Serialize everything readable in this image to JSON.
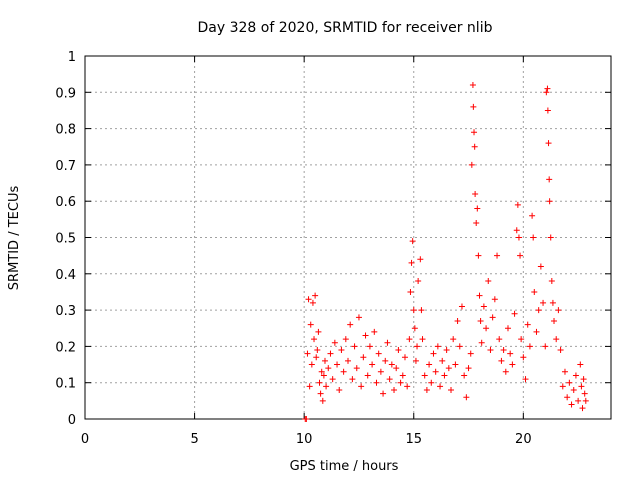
{
  "chart_data": {
    "type": "scatter",
    "title": "Day 328 of 2020, SRMTID for receiver nlib",
    "xlabel": "GPS time / hours",
    "ylabel": "SRMTID / TECUs",
    "xlim": [
      0,
      24
    ],
    "ylim": [
      0,
      1
    ],
    "x_ticks": [
      0,
      5,
      10,
      15,
      20
    ],
    "x_tick_labels": [
      "0",
      "5",
      "10",
      "15",
      "20"
    ],
    "y_ticks": [
      0,
      0.1,
      0.2,
      0.3,
      0.4,
      0.5,
      0.6,
      0.7,
      0.8,
      0.9,
      1
    ],
    "y_tick_labels": [
      "0",
      "0.1",
      "0.2",
      "0.3",
      "0.4",
      "0.5",
      "0.6",
      "0.7",
      "0.8",
      "0.9",
      "1"
    ],
    "grid": true,
    "marker": "plus",
    "color": "#ff0000",
    "series": [
      {
        "name": "SRMTID",
        "points": [
          [
            10.05,
            0.0
          ],
          [
            10.1,
            0.0
          ],
          [
            10.15,
            0.18
          ],
          [
            10.2,
            0.33
          ],
          [
            10.25,
            0.09
          ],
          [
            10.3,
            0.26
          ],
          [
            10.35,
            0.15
          ],
          [
            10.4,
            0.32
          ],
          [
            10.45,
            0.22
          ],
          [
            10.5,
            0.34
          ],
          [
            10.55,
            0.17
          ],
          [
            10.6,
            0.19
          ],
          [
            10.65,
            0.24
          ],
          [
            10.7,
            0.1
          ],
          [
            10.75,
            0.07
          ],
          [
            10.8,
            0.13
          ],
          [
            10.85,
            0.05
          ],
          [
            10.9,
            0.12
          ],
          [
            10.95,
            0.16
          ],
          [
            11.0,
            0.09
          ],
          [
            11.1,
            0.14
          ],
          [
            11.2,
            0.18
          ],
          [
            11.3,
            0.11
          ],
          [
            11.4,
            0.21
          ],
          [
            11.5,
            0.15
          ],
          [
            11.6,
            0.08
          ],
          [
            11.7,
            0.19
          ],
          [
            11.8,
            0.13
          ],
          [
            11.9,
            0.22
          ],
          [
            12.0,
            0.16
          ],
          [
            12.1,
            0.26
          ],
          [
            12.2,
            0.11
          ],
          [
            12.3,
            0.2
          ],
          [
            12.4,
            0.14
          ],
          [
            12.5,
            0.28
          ],
          [
            12.6,
            0.09
          ],
          [
            12.7,
            0.17
          ],
          [
            12.8,
            0.23
          ],
          [
            12.9,
            0.12
          ],
          [
            13.0,
            0.2
          ],
          [
            13.1,
            0.15
          ],
          [
            13.2,
            0.24
          ],
          [
            13.3,
            0.1
          ],
          [
            13.4,
            0.18
          ],
          [
            13.5,
            0.13
          ],
          [
            13.6,
            0.07
          ],
          [
            13.7,
            0.16
          ],
          [
            13.8,
            0.21
          ],
          [
            13.9,
            0.11
          ],
          [
            14.0,
            0.15
          ],
          [
            14.1,
            0.08
          ],
          [
            14.2,
            0.14
          ],
          [
            14.3,
            0.19
          ],
          [
            14.4,
            0.1
          ],
          [
            14.5,
            0.12
          ],
          [
            14.6,
            0.17
          ],
          [
            14.7,
            0.09
          ],
          [
            14.8,
            0.22
          ],
          [
            14.85,
            0.35
          ],
          [
            14.9,
            0.43
          ],
          [
            14.95,
            0.49
          ],
          [
            15.0,
            0.3
          ],
          [
            15.05,
            0.25
          ],
          [
            15.1,
            0.16
          ],
          [
            15.15,
            0.2
          ],
          [
            15.2,
            0.38
          ],
          [
            15.3,
            0.44
          ],
          [
            15.35,
            0.3
          ],
          [
            15.4,
            0.22
          ],
          [
            15.5,
            0.12
          ],
          [
            15.6,
            0.08
          ],
          [
            15.7,
            0.15
          ],
          [
            15.8,
            0.1
          ],
          [
            15.9,
            0.18
          ],
          [
            16.0,
            0.13
          ],
          [
            16.1,
            0.2
          ],
          [
            16.2,
            0.09
          ],
          [
            16.3,
            0.16
          ],
          [
            16.4,
            0.12
          ],
          [
            16.5,
            0.19
          ],
          [
            16.6,
            0.14
          ],
          [
            16.7,
            0.08
          ],
          [
            16.8,
            0.22
          ],
          [
            16.9,
            0.15
          ],
          [
            17.0,
            0.27
          ],
          [
            17.1,
            0.2
          ],
          [
            17.2,
            0.31
          ],
          [
            17.3,
            0.12
          ],
          [
            17.4,
            0.06
          ],
          [
            17.5,
            0.14
          ],
          [
            17.6,
            0.18
          ],
          [
            17.65,
            0.7
          ],
          [
            17.7,
            0.92
          ],
          [
            17.72,
            0.86
          ],
          [
            17.75,
            0.79
          ],
          [
            17.78,
            0.75
          ],
          [
            17.8,
            0.62
          ],
          [
            17.85,
            0.54
          ],
          [
            17.9,
            0.58
          ],
          [
            17.95,
            0.45
          ],
          [
            18.0,
            0.34
          ],
          [
            18.05,
            0.27
          ],
          [
            18.1,
            0.21
          ],
          [
            18.2,
            0.31
          ],
          [
            18.3,
            0.25
          ],
          [
            18.4,
            0.38
          ],
          [
            18.5,
            0.19
          ],
          [
            18.6,
            0.28
          ],
          [
            18.7,
            0.33
          ],
          [
            18.8,
            0.45
          ],
          [
            18.9,
            0.22
          ],
          [
            19.0,
            0.16
          ],
          [
            19.1,
            0.19
          ],
          [
            19.2,
            0.13
          ],
          [
            19.3,
            0.25
          ],
          [
            19.4,
            0.18
          ],
          [
            19.5,
            0.15
          ],
          [
            19.6,
            0.29
          ],
          [
            19.7,
            0.52
          ],
          [
            19.75,
            0.59
          ],
          [
            19.8,
            0.5
          ],
          [
            19.85,
            0.45
          ],
          [
            19.9,
            0.22
          ],
          [
            20.0,
            0.17
          ],
          [
            20.1,
            0.11
          ],
          [
            20.2,
            0.26
          ],
          [
            20.3,
            0.2
          ],
          [
            20.4,
            0.56
          ],
          [
            20.45,
            0.5
          ],
          [
            20.5,
            0.35
          ],
          [
            20.6,
            0.24
          ],
          [
            20.7,
            0.3
          ],
          [
            20.8,
            0.42
          ],
          [
            20.9,
            0.32
          ],
          [
            21.0,
            0.2
          ],
          [
            21.05,
            0.9
          ],
          [
            21.1,
            0.91
          ],
          [
            21.12,
            0.85
          ],
          [
            21.15,
            0.76
          ],
          [
            21.18,
            0.66
          ],
          [
            21.2,
            0.6
          ],
          [
            21.25,
            0.5
          ],
          [
            21.3,
            0.38
          ],
          [
            21.35,
            0.32
          ],
          [
            21.4,
            0.27
          ],
          [
            21.5,
            0.22
          ],
          [
            21.6,
            0.3
          ],
          [
            21.7,
            0.19
          ],
          [
            21.8,
            0.09
          ],
          [
            21.9,
            0.13
          ],
          [
            22.0,
            0.06
          ],
          [
            22.1,
            0.1
          ],
          [
            22.2,
            0.04
          ],
          [
            22.3,
            0.08
          ],
          [
            22.4,
            0.12
          ],
          [
            22.5,
            0.05
          ],
          [
            22.6,
            0.15
          ],
          [
            22.65,
            0.09
          ],
          [
            22.7,
            0.03
          ],
          [
            22.75,
            0.11
          ],
          [
            22.8,
            0.07
          ],
          [
            22.85,
            0.05
          ]
        ]
      }
    ]
  }
}
